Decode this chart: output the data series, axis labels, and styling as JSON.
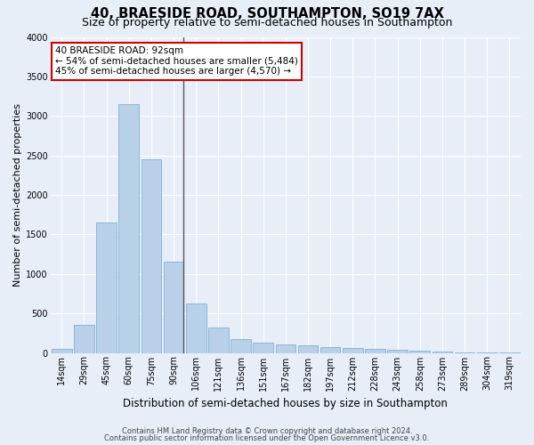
{
  "title": "40, BRAESIDE ROAD, SOUTHAMPTON, SO19 7AX",
  "subtitle": "Size of property relative to semi-detached houses in Southampton",
  "xlabel": "Distribution of semi-detached houses by size in Southampton",
  "ylabel": "Number of semi-detached properties",
  "footer1": "Contains HM Land Registry data © Crown copyright and database right 2024.",
  "footer2": "Contains public sector information licensed under the Open Government Licence v3.0.",
  "annotation_title": "40 BRAESIDE ROAD: 92sqm",
  "annotation_line2": "← 54% of semi-detached houses are smaller (5,484)",
  "annotation_line3": "45% of semi-detached houses are larger (4,570) →",
  "bar_labels": [
    "14sqm",
    "29sqm",
    "45sqm",
    "60sqm",
    "75sqm",
    "90sqm",
    "106sqm",
    "121sqm",
    "136sqm",
    "151sqm",
    "167sqm",
    "182sqm",
    "197sqm",
    "212sqm",
    "228sqm",
    "243sqm",
    "258sqm",
    "273sqm",
    "289sqm",
    "304sqm",
    "319sqm"
  ],
  "bar_values": [
    50,
    350,
    1650,
    3150,
    2450,
    1150,
    620,
    320,
    180,
    130,
    110,
    100,
    70,
    65,
    55,
    45,
    30,
    15,
    10,
    5,
    5
  ],
  "bar_color": "#b8d0e8",
  "bar_edge_color": "#6fa8d0",
  "vline_color": "#555555",
  "annotation_box_color": "#ffffff",
  "annotation_box_edge": "#cc0000",
  "ylim": [
    0,
    4000
  ],
  "yticks": [
    0,
    500,
    1000,
    1500,
    2000,
    2500,
    3000,
    3500,
    4000
  ],
  "background_color": "#e8eef8",
  "grid_color": "#ffffff",
  "title_fontsize": 10.5,
  "subtitle_fontsize": 9,
  "ylabel_fontsize": 8,
  "xlabel_fontsize": 8.5,
  "tick_fontsize": 7,
  "annotation_fontsize": 7.5,
  "footer_fontsize": 6
}
